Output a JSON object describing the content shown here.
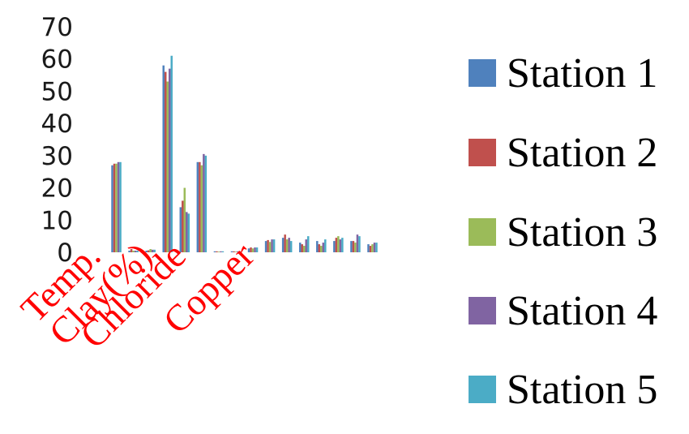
{
  "colors": {
    "station1": "#4f81bd",
    "station2": "#c0504d",
    "station3": "#9bbb59",
    "station4": "#8064a2",
    "station5": "#4bacc6",
    "category_label": "#ff0000"
  },
  "chart_data": {
    "type": "bar",
    "title": "",
    "xlabel": "",
    "ylabel": "",
    "ylim": [
      0,
      70
    ],
    "yticks": [
      0,
      10,
      20,
      30,
      40,
      50,
      60,
      70
    ],
    "grid": false,
    "legend_position": "right",
    "categories": [
      "Temp.",
      "",
      "",
      "Clay(%)",
      "",
      "Chloride",
      "",
      "",
      "",
      "Copper",
      "",
      "",
      "",
      "",
      "",
      ""
    ],
    "series": [
      {
        "name": "Station 1",
        "color": "#4f81bd",
        "values": [
          27,
          0.5,
          0.5,
          58,
          14,
          28,
          0.3,
          0.3,
          1.2,
          3.5,
          4.5,
          3.0,
          3.5,
          3.5,
          3.5,
          2.5
        ]
      },
      {
        "name": "Station 2",
        "color": "#c0504d",
        "values": [
          27.5,
          1.0,
          0.6,
          56,
          16,
          28,
          0.3,
          0.3,
          1.5,
          3.8,
          5.5,
          2.5,
          2.5,
          4.5,
          3.5,
          2.0
        ]
      },
      {
        "name": "Station 3",
        "color": "#9bbb59",
        "values": [
          27.5,
          0.5,
          1.0,
          53,
          20,
          27,
          0.2,
          0.2,
          1.2,
          3.2,
          4.0,
          2.0,
          2.0,
          5.0,
          3.0,
          2.5
        ]
      },
      {
        "name": "Station 4",
        "color": "#8064a2",
        "values": [
          28,
          0.5,
          0.8,
          57,
          12.5,
          30.5,
          0.3,
          0.3,
          1.5,
          4.0,
          4.5,
          4.0,
          3.0,
          4.0,
          5.5,
          3.0
        ]
      },
      {
        "name": "Station 5",
        "color": "#4bacc6",
        "values": [
          28,
          0.5,
          0.8,
          61,
          12,
          30,
          0.3,
          0.3,
          1.5,
          4.0,
          3.5,
          5.0,
          4.0,
          4.5,
          5.0,
          3.0
        ]
      }
    ]
  }
}
